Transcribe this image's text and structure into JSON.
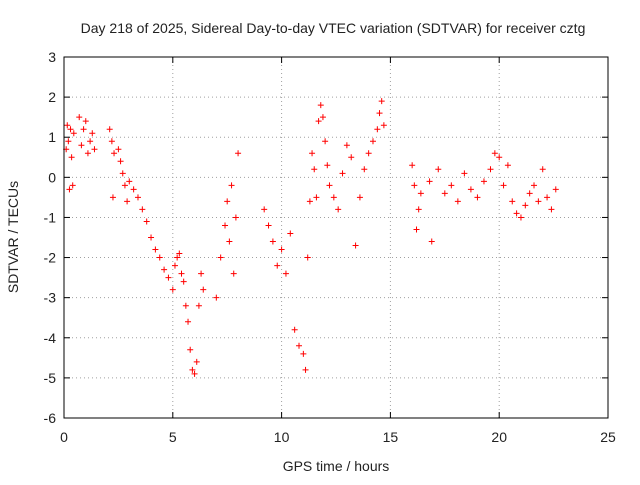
{
  "chart_data": {
    "type": "scatter",
    "title": "Day 218 of 2025, Sidereal Day-to-day VTEC variation (SDTVAR) for receiver cztg",
    "xlabel": "GPS time / hours",
    "ylabel": "SDTVAR / TECUs",
    "xlim": [
      0,
      25
    ],
    "ylim": [
      -6,
      3
    ],
    "xticks": [
      0,
      5,
      10,
      15,
      20,
      25
    ],
    "yticks": [
      -6,
      -5,
      -4,
      -3,
      -2,
      -1,
      0,
      1,
      2,
      3
    ],
    "grid": true,
    "marker": "+",
    "marker_color": "#ff0000",
    "series": [
      {
        "name": "SDTVAR",
        "points": [
          [
            0.1,
            0.7
          ],
          [
            0.15,
            1.3
          ],
          [
            0.2,
            0.9
          ],
          [
            0.25,
            -0.3
          ],
          [
            0.3,
            1.2
          ],
          [
            0.35,
            0.5
          ],
          [
            0.4,
            -0.2
          ],
          [
            0.45,
            1.1
          ],
          [
            0.7,
            1.5
          ],
          [
            0.8,
            0.8
          ],
          [
            0.9,
            1.2
          ],
          [
            1.0,
            1.4
          ],
          [
            1.1,
            0.6
          ],
          [
            1.2,
            0.9
          ],
          [
            1.3,
            1.1
          ],
          [
            1.4,
            0.7
          ],
          [
            2.1,
            1.2
          ],
          [
            2.2,
            0.9
          ],
          [
            2.3,
            0.6
          ],
          [
            2.25,
            -0.5
          ],
          [
            2.5,
            0.7
          ],
          [
            2.6,
            0.4
          ],
          [
            2.7,
            0.1
          ],
          [
            2.8,
            -0.2
          ],
          [
            2.9,
            -0.6
          ],
          [
            3.0,
            -0.1
          ],
          [
            3.2,
            -0.3
          ],
          [
            3.4,
            -0.5
          ],
          [
            3.6,
            -0.8
          ],
          [
            3.8,
            -1.1
          ],
          [
            4.0,
            -1.5
          ],
          [
            4.2,
            -1.8
          ],
          [
            4.4,
            -2.0
          ],
          [
            4.6,
            -2.3
          ],
          [
            4.8,
            -2.5
          ],
          [
            5.0,
            -2.8
          ],
          [
            5.1,
            -2.2
          ],
          [
            5.2,
            -2.0
          ],
          [
            5.3,
            -1.9
          ],
          [
            5.4,
            -2.4
          ],
          [
            5.5,
            -2.6
          ],
          [
            5.6,
            -3.2
          ],
          [
            5.7,
            -3.6
          ],
          [
            5.8,
            -4.3
          ],
          [
            5.9,
            -4.8
          ],
          [
            6.0,
            -4.9
          ],
          [
            6.1,
            -4.6
          ],
          [
            6.2,
            -3.2
          ],
          [
            6.3,
            -2.4
          ],
          [
            6.4,
            -2.8
          ],
          [
            7.0,
            -3.0
          ],
          [
            7.2,
            -2.0
          ],
          [
            7.4,
            -1.2
          ],
          [
            7.5,
            -0.6
          ],
          [
            7.6,
            -1.6
          ],
          [
            7.7,
            -0.2
          ],
          [
            7.8,
            -2.4
          ],
          [
            7.9,
            -1.0
          ],
          [
            8.0,
            0.6
          ],
          [
            9.2,
            -0.8
          ],
          [
            9.4,
            -1.2
          ],
          [
            9.6,
            -1.6
          ],
          [
            9.8,
            -2.2
          ],
          [
            10.0,
            -1.8
          ],
          [
            10.2,
            -2.4
          ],
          [
            10.4,
            -1.4
          ],
          [
            10.6,
            -3.8
          ],
          [
            10.8,
            -4.2
          ],
          [
            11.0,
            -4.4
          ],
          [
            11.1,
            -4.8
          ],
          [
            11.2,
            -2.0
          ],
          [
            11.3,
            -0.6
          ],
          [
            11.4,
            0.6
          ],
          [
            11.5,
            0.2
          ],
          [
            11.6,
            -0.5
          ],
          [
            11.7,
            1.4
          ],
          [
            11.8,
            1.8
          ],
          [
            11.9,
            1.5
          ],
          [
            12.0,
            0.9
          ],
          [
            12.1,
            0.3
          ],
          [
            12.2,
            -0.2
          ],
          [
            12.4,
            -0.5
          ],
          [
            12.6,
            -0.8
          ],
          [
            12.8,
            0.1
          ],
          [
            13.0,
            0.8
          ],
          [
            13.2,
            0.5
          ],
          [
            13.4,
            -1.7
          ],
          [
            13.6,
            -0.5
          ],
          [
            13.8,
            0.2
          ],
          [
            14.0,
            0.6
          ],
          [
            14.2,
            0.9
          ],
          [
            14.4,
            1.2
          ],
          [
            14.5,
            1.6
          ],
          [
            14.6,
            1.9
          ],
          [
            14.7,
            1.3
          ],
          [
            16.0,
            0.3
          ],
          [
            16.1,
            -0.2
          ],
          [
            16.2,
            -1.3
          ],
          [
            16.3,
            -0.8
          ],
          [
            16.4,
            -0.4
          ],
          [
            16.8,
            -0.1
          ],
          [
            16.9,
            -1.6
          ],
          [
            17.2,
            0.2
          ],
          [
            17.5,
            -0.4
          ],
          [
            17.8,
            -0.2
          ],
          [
            18.1,
            -0.6
          ],
          [
            18.4,
            0.1
          ],
          [
            18.7,
            -0.3
          ],
          [
            19.0,
            -0.5
          ],
          [
            19.3,
            -0.1
          ],
          [
            19.6,
            0.2
          ],
          [
            19.8,
            0.6
          ],
          [
            20.0,
            0.5
          ],
          [
            20.2,
            -0.2
          ],
          [
            20.4,
            0.3
          ],
          [
            20.6,
            -0.6
          ],
          [
            20.8,
            -0.9
          ],
          [
            21.0,
            -1.0
          ],
          [
            21.2,
            -0.7
          ],
          [
            21.4,
            -0.4
          ],
          [
            21.6,
            -0.2
          ],
          [
            21.8,
            -0.6
          ],
          [
            22.0,
            0.2
          ],
          [
            22.2,
            -0.5
          ],
          [
            22.4,
            -0.8
          ],
          [
            22.6,
            -0.3
          ]
        ]
      }
    ]
  }
}
